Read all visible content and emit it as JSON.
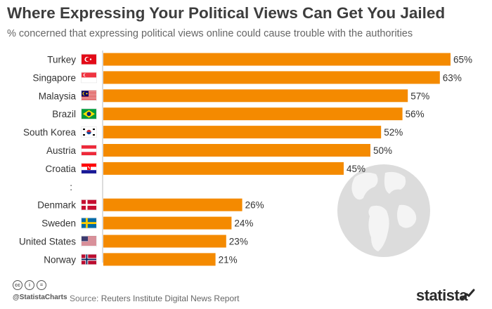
{
  "header": {
    "title": "Where Expressing Your Political Views Can Get You Jailed",
    "subtitle": "% concerned that expressing political views online could cause trouble with the authorities"
  },
  "footer": {
    "handle": "@StatistaCharts",
    "source_label": "Source:",
    "source_text": "Reuters Institute Digital News Report",
    "brand": "statista",
    "license_icons": [
      "cc",
      "by",
      "nd"
    ]
  },
  "colors": {
    "bar": "#f48a00",
    "globe": "#d9d9d9",
    "text": "#333333",
    "separator": "#bbbbbb"
  },
  "chart_data": {
    "type": "bar",
    "orientation": "horizontal",
    "title": "Where Expressing Your Political Views Can Get You Jailed",
    "subtitle": "% concerned that expressing political views online could cause trouble with the authorities",
    "categories": [
      "Turkey",
      "Singapore",
      "Malaysia",
      "Brazil",
      "South Korea",
      "Austria",
      "Croatia",
      ":",
      "Denmark",
      "Sweden",
      "United States",
      "Norway"
    ],
    "values": [
      65,
      63,
      57,
      56,
      52,
      50,
      45,
      null,
      26,
      24,
      23,
      21
    ],
    "value_labels": [
      "65%",
      "63%",
      "57%",
      "56%",
      "52%",
      "50%",
      "45%",
      "",
      "26%",
      "24%",
      "23%",
      "21%"
    ],
    "flags": [
      "turkey-flag-icon",
      "singapore-flag-icon",
      "malaysia-flag-icon",
      "brazil-flag-icon",
      "south-korea-flag-icon",
      "austria-flag-icon",
      "croatia-flag-icon",
      "",
      "denmark-flag-icon",
      "sweden-flag-icon",
      "united-states-flag-icon",
      "norway-flag-icon"
    ],
    "xlim": [
      0,
      65
    ],
    "grid": false,
    "legend": "none"
  }
}
